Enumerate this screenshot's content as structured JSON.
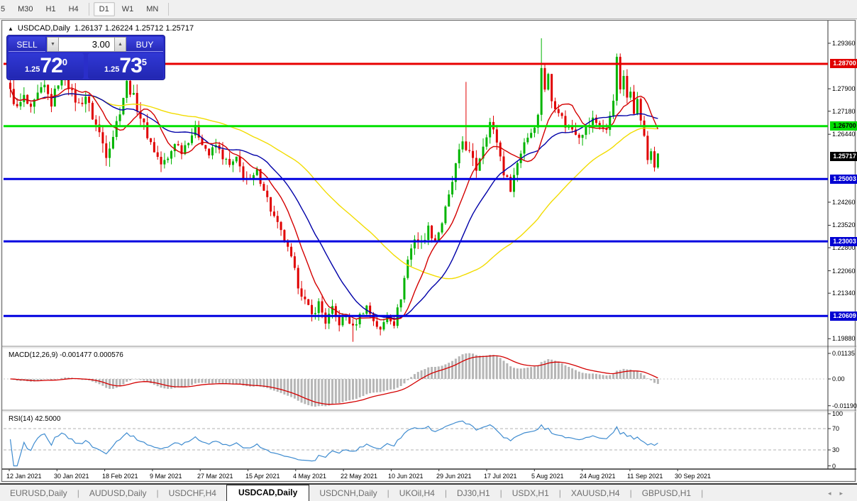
{
  "toolbar": {
    "timeframes": [
      "5",
      "M30",
      "H1",
      "H4",
      "D1",
      "W1",
      "MN"
    ],
    "active": "D1"
  },
  "chart": {
    "collapse_arrow": "▲",
    "symbol": "USDCAD,Daily",
    "ohlc_text": "1.26137 1.26224 1.25712 1.25717",
    "trade_panel": {
      "sell_label": "SELL",
      "buy_label": "BUY",
      "volume": "3.00",
      "spin_down": "▼",
      "spin_up": "▲",
      "sell_price_small": "1.25",
      "sell_price_big": "72",
      "sell_price_sup": "0",
      "buy_price_small": "1.25",
      "buy_price_big": "73",
      "buy_price_sup": "5"
    }
  },
  "price_axis": {
    "ticks": [
      "1.29360",
      "1.27900",
      "1.27180",
      "1.26440",
      "1.24260",
      "1.23520",
      "1.22800",
      "1.22060",
      "1.21340",
      "1.19880"
    ],
    "tick_values": [
      1.2936,
      1.279,
      1.2718,
      1.2644,
      1.2426,
      1.2352,
      1.228,
      1.2206,
      1.2134,
      1.1988
    ],
    "badges": [
      {
        "label": "1.28700",
        "value": 1.287,
        "bg": "#e00000",
        "fg": "#ffffff",
        "name": "resistance-badge"
      },
      {
        "label": "1.26700",
        "value": 1.267,
        "bg": "#00dc00",
        "fg": "#000000",
        "name": "pivot-badge"
      },
      {
        "label": "1.25717",
        "value": 1.25717,
        "bg": "#000000",
        "fg": "#ffffff",
        "name": "last-price-badge"
      },
      {
        "label": "1.25003",
        "value": 1.25003,
        "bg": "#0000d2",
        "fg": "#ffffff",
        "name": "support1-badge"
      },
      {
        "label": "1.23003",
        "value": 1.23003,
        "bg": "#0000d2",
        "fg": "#ffffff",
        "name": "support2-badge"
      },
      {
        "label": "1.20609",
        "value": 1.20609,
        "bg": "#0000d2",
        "fg": "#ffffff",
        "name": "support3-badge"
      }
    ]
  },
  "time_axis": {
    "labels": [
      "12 Jan 2021",
      "30 Jan 2021",
      "18 Feb 2021",
      "9 Mar 2021",
      "27 Mar 2021",
      "15 Apr 2021",
      "4 May 2021",
      "22 May 2021",
      "10 Jun 2021",
      "29 Jun 2021",
      "17 Jul 2021",
      "5 Aug 2021",
      "24 Aug 2021",
      "11 Sep 2021",
      "30 Sep 2021"
    ]
  },
  "macd_pane": {
    "label": "MACD(12,26,9) -0.001477 0.000576",
    "ticks": [
      "0.01135",
      "0.00",
      "-0.01190"
    ],
    "tick_values": [
      0.01135,
      0.0,
      -0.0119
    ],
    "histogram_color": "#b6b6b6",
    "signal_color": "#d40000"
  },
  "rsi_pane": {
    "label": "RSI(14) 42.5000",
    "ticks": [
      "100",
      "70",
      "30",
      "0"
    ],
    "tick_values": [
      100,
      70,
      30,
      0
    ],
    "levels": [
      70,
      30
    ],
    "line_color": "#3f8cd0"
  },
  "tabs": {
    "items": [
      "EURUSD,Daily",
      "AUDUSD,Daily",
      "USDCHF,H4",
      "USDCAD,Daily",
      "USDCNH,Daily",
      "UKOil,H4",
      "DJ30,H1",
      "USDX,H1",
      "XAUUSD,H4",
      "GBPUSD,H1"
    ],
    "active": "USDCAD,Daily",
    "nav_left": "◂",
    "nav_right": "▸"
  },
  "chart_data": {
    "type": "candlestick",
    "symbol": "USDCAD",
    "timeframe": "Daily",
    "visible_range_dates": [
      "12 Jan 2021",
      "8 Oct 2021"
    ],
    "price_axis_range": [
      1.1975,
      1.2945
    ],
    "candle_count": 190,
    "colors": {
      "up": "#00b400",
      "down": "#e00000"
    },
    "close_anchors": [
      [
        0,
        1.278
      ],
      [
        2,
        1.2725
      ],
      [
        4,
        1.2762
      ],
      [
        6,
        1.2718
      ],
      [
        8,
        1.2768
      ],
      [
        10,
        1.2795
      ],
      [
        12,
        1.2742
      ],
      [
        14,
        1.2812
      ],
      [
        16,
        1.2832
      ],
      [
        18,
        1.2772
      ],
      [
        20,
        1.2738
      ],
      [
        22,
        1.2768
      ],
      [
        24,
        1.27
      ],
      [
        26,
        1.2648
      ],
      [
        28,
        1.2582
      ],
      [
        30,
        1.2642
      ],
      [
        32,
        1.2722
      ],
      [
        34,
        1.2808
      ],
      [
        36,
        1.2762
      ],
      [
        38,
        1.27
      ],
      [
        40,
        1.2642
      ],
      [
        42,
        1.2592
      ],
      [
        44,
        1.2548
      ],
      [
        46,
        1.2562
      ],
      [
        48,
        1.262
      ],
      [
        50,
        1.2592
      ],
      [
        52,
        1.2628
      ],
      [
        54,
        1.2662
      ],
      [
        56,
        1.262
      ],
      [
        58,
        1.2578
      ],
      [
        60,
        1.2608
      ],
      [
        62,
        1.2572
      ],
      [
        64,
        1.2542
      ],
      [
        66,
        1.2562
      ],
      [
        68,
        1.2512
      ],
      [
        70,
        1.2492
      ],
      [
        72,
        1.2522
      ],
      [
        74,
        1.2472
      ],
      [
        76,
        1.2402
      ],
      [
        78,
        1.2352
      ],
      [
        80,
        1.2302
      ],
      [
        82,
        1.2242
      ],
      [
        84,
        1.2162
      ],
      [
        86,
        1.2108
      ],
      [
        88,
        1.2062
      ],
      [
        90,
        1.2102
      ],
      [
        92,
        1.2042
      ],
      [
        94,
        1.2082
      ],
      [
        96,
        1.2038
      ],
      [
        98,
        1.2062
      ],
      [
        100,
        1.2022
      ],
      [
        102,
        1.2062
      ],
      [
        104,
        1.2092
      ],
      [
        106,
        1.2048
      ],
      [
        108,
        1.2012
      ],
      [
        110,
        1.2068
      ],
      [
        112,
        1.2038
      ],
      [
        114,
        1.2122
      ],
      [
        116,
        1.2242
      ],
      [
        118,
        1.2312
      ],
      [
        120,
        1.2292
      ],
      [
        122,
        1.2342
      ],
      [
        124,
        1.2302
      ],
      [
        126,
        1.2362
      ],
      [
        128,
        1.2442
      ],
      [
        130,
        1.2542
      ],
      [
        132,
        1.2622
      ],
      [
        134,
        1.2582
      ],
      [
        136,
        1.2532
      ],
      [
        138,
        1.2612
      ],
      [
        140,
        1.2682
      ],
      [
        142,
        1.2622
      ],
      [
        144,
        1.2522
      ],
      [
        146,
        1.2472
      ],
      [
        148,
        1.2552
      ],
      [
        150,
        1.2622
      ],
      [
        152,
        1.2652
      ],
      [
        154,
        1.2702
      ],
      [
        155,
        1.2862
      ],
      [
        156,
        1.2792
      ],
      [
        157,
        1.2832
      ],
      [
        158,
        1.2752
      ],
      [
        160,
        1.2722
      ],
      [
        162,
        1.2672
      ],
      [
        164,
        1.2662
      ],
      [
        166,
        1.2642
      ],
      [
        168,
        1.2662
      ],
      [
        170,
        1.2692
      ],
      [
        172,
        1.2672
      ],
      [
        174,
        1.2652
      ],
      [
        176,
        1.2762
      ],
      [
        177,
        1.2882
      ],
      [
        178,
        1.2792
      ],
      [
        179,
        1.2822
      ],
      [
        180,
        1.2762
      ],
      [
        181,
        1.2792
      ],
      [
        182,
        1.2722
      ],
      [
        183,
        1.2752
      ],
      [
        184,
        1.2692
      ],
      [
        185,
        1.2632
      ],
      [
        186,
        1.2562
      ],
      [
        187,
        1.2592
      ],
      [
        188,
        1.2542
      ],
      [
        189,
        1.2572
      ]
    ],
    "volatility_anchors": [
      [
        0,
        0.0042
      ],
      [
        30,
        0.0045
      ],
      [
        60,
        0.0034
      ],
      [
        84,
        0.0038
      ],
      [
        100,
        0.003
      ],
      [
        114,
        0.0032
      ],
      [
        125,
        0.004
      ],
      [
        140,
        0.0038
      ],
      [
        160,
        0.0036
      ],
      [
        189,
        0.0036
      ]
    ],
    "wick_spikes": [
      {
        "i": 100,
        "low": 1.1978
      },
      {
        "i": 133,
        "high": 1.2812
      },
      {
        "i": 155,
        "high": 1.2952
      },
      {
        "i": 177,
        "high": 1.2903
      }
    ],
    "horizontal_levels": [
      {
        "price": 1.287,
        "color": "#e80000",
        "width": 3
      },
      {
        "price": 1.267,
        "color": "#00e000",
        "width": 3
      },
      {
        "price": 1.25003,
        "color": "#0000e0",
        "width": 3
      },
      {
        "price": 1.23003,
        "color": "#0000e0",
        "width": 3
      },
      {
        "price": 1.20609,
        "color": "#0000e0",
        "width": 3
      }
    ],
    "moving_averages": [
      {
        "name": "ma-slow",
        "period": 55,
        "color": "#f2dc00",
        "width": 1.4
      },
      {
        "name": "ma-medium",
        "period": 22,
        "color": "#0000a8",
        "width": 1.4
      },
      {
        "name": "ma-fast",
        "period": 10,
        "color": "#d40000",
        "width": 1.4
      }
    ],
    "macd": {
      "fast": 12,
      "slow": 26,
      "signal": 9,
      "axis_max": 0.01135,
      "axis_min": -0.0119,
      "current_main": -0.001477,
      "current_signal": 0.000576
    },
    "rsi": {
      "period": 14,
      "current": 42.5,
      "levels": [
        70,
        30
      ]
    }
  }
}
